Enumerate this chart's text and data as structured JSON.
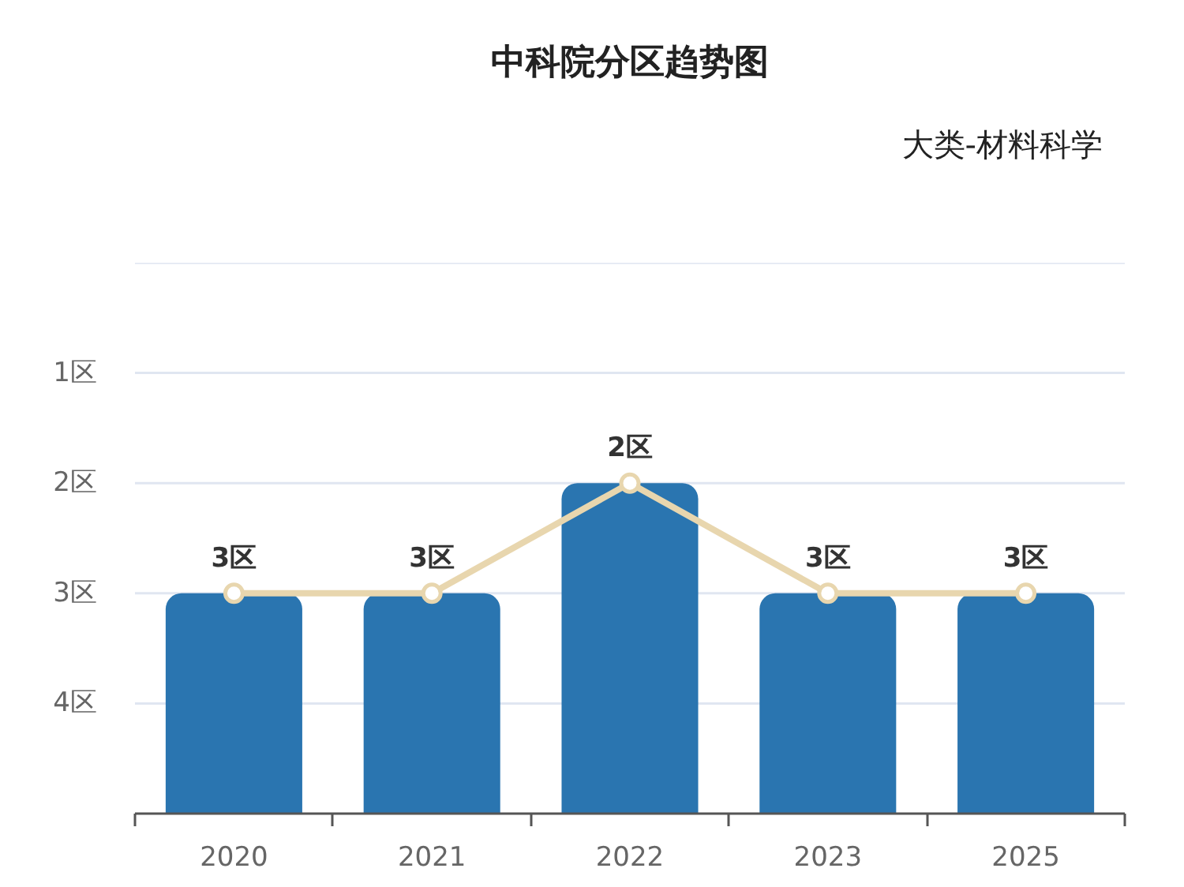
{
  "chart_data": {
    "type": "bar",
    "title": "中科院分区趋势图",
    "subtitle": "大类-材料科学",
    "categories": [
      "2020",
      "2021",
      "2022",
      "2023",
      "2025"
    ],
    "series": [
      {
        "color": "#2a75b0",
        "base": [
          5,
          5,
          5,
          5,
          5
        ],
        "values": [
          -2,
          -2,
          -3,
          -2,
          -2
        ]
      },
      {
        "type": "line",
        "color": "#e8d6ae",
        "values": [
          3,
          3,
          2,
          3,
          3
        ],
        "value_labels": [
          "3区",
          "3区",
          "2区",
          "3区",
          "3区"
        ]
      }
    ],
    "marker": "circle",
    "ylim": [
      5,
      0
    ],
    "yticks": [
      {
        "value": 0,
        "label": null
      },
      {
        "value": 1,
        "label": "1区"
      },
      {
        "value": 2,
        "label": "2区"
      },
      {
        "value": 3,
        "label": "3区"
      },
      {
        "value": 4,
        "label": "4区"
      }
    ],
    "grid": "y"
  }
}
